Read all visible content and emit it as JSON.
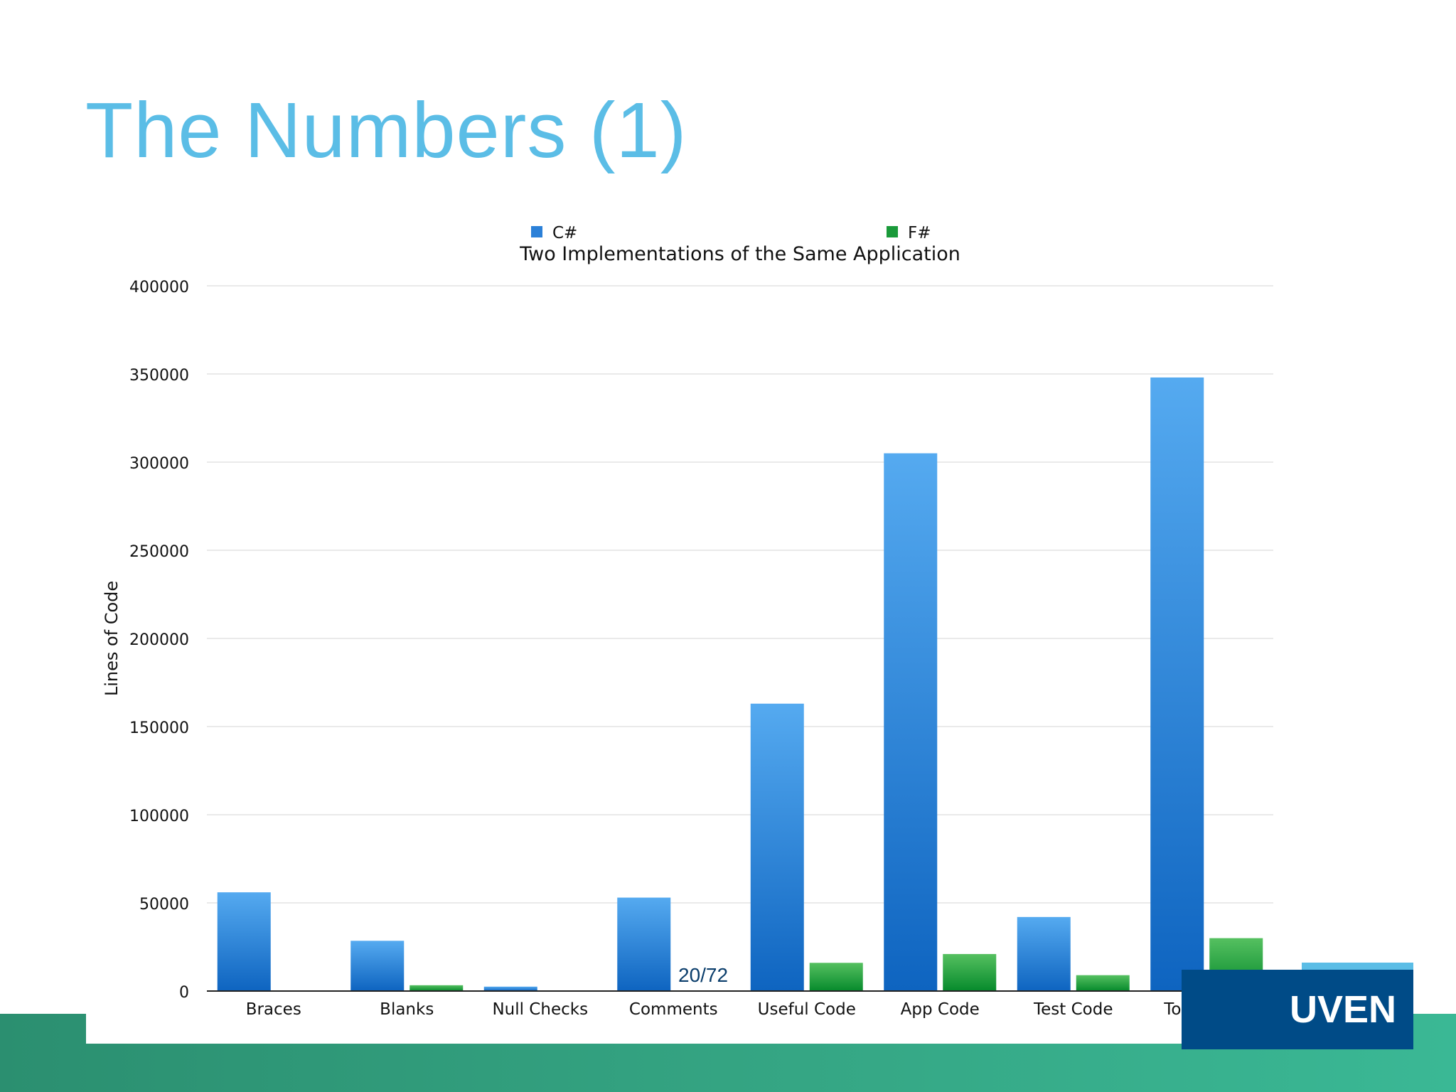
{
  "slide": {
    "title": "The Numbers (1)",
    "page_number": "20/72",
    "logo_text": "UVEN"
  },
  "colors": {
    "title": "#5bbde6",
    "csharp_top": "#55aaf0",
    "csharp_bottom": "#0e64c0",
    "fsharp_top": "#55c060",
    "fsharp_bottom": "#068a2c",
    "footer": "#2f9a78",
    "logo": "#004b87"
  },
  "chart_data": {
    "type": "bar",
    "title": "Two Implementations of the Same Application",
    "xlabel": "",
    "ylabel": "Lines of Code",
    "ylim": [
      0,
      400000
    ],
    "yticks": [
      0,
      50000,
      100000,
      150000,
      200000,
      250000,
      300000,
      350000,
      400000
    ],
    "grid": true,
    "legend_position": "top",
    "categories": [
      "Braces",
      "Blanks",
      "Null Checks",
      "Comments",
      "Useful Code",
      "App Code",
      "Test Code",
      "Total Code"
    ],
    "series": [
      {
        "name": "C#",
        "values": [
          56000,
          28500,
          2500,
          53000,
          163000,
          305000,
          42000,
          348000
        ]
      },
      {
        "name": "F#",
        "values": [
          0,
          3300,
          0,
          0,
          16000,
          21000,
          9000,
          30000
        ]
      }
    ]
  }
}
